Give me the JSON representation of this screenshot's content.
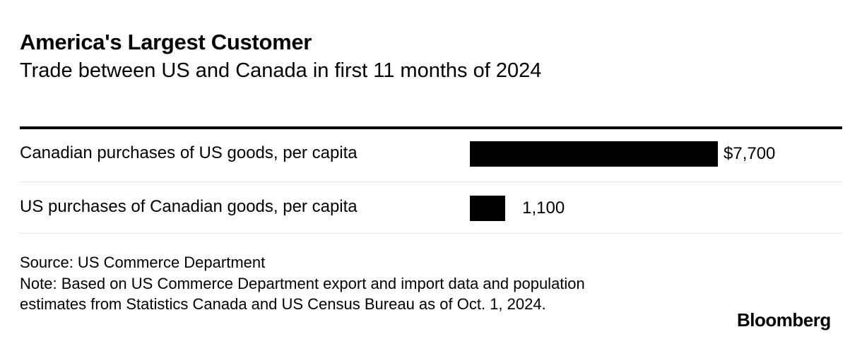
{
  "chart_data": {
    "type": "bar",
    "orientation": "horizontal",
    "title": "America's Largest Customer",
    "subtitle": "Trade between US and Canada in first 11 months of 2024",
    "categories": [
      "Canadian purchases of US goods, per capita",
      "US purchases of Canadian goods, per capita"
    ],
    "values": [
      7700,
      1100
    ],
    "value_labels": [
      "$7,700",
      "1,100"
    ],
    "xlim": [
      0,
      7700
    ],
    "grid": false,
    "bar_color": "#000000"
  },
  "footer": {
    "source": "Source: US Commerce Department",
    "note": "Note: Based on US Commerce Department export and import data and population estimates from Statistics Canada and US Census Bureau as of Oct. 1, 2024."
  },
  "brand": "Bloomberg"
}
